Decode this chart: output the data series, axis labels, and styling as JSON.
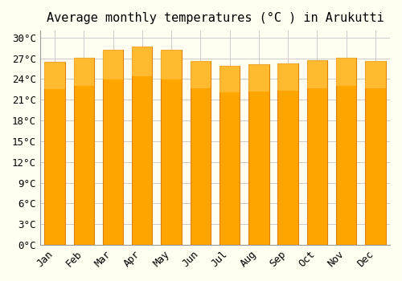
{
  "title": "Average monthly temperatures (°C ) in Arukutti",
  "months": [
    "Jan",
    "Feb",
    "Mar",
    "Apr",
    "May",
    "Jun",
    "Jul",
    "Aug",
    "Sep",
    "Oct",
    "Nov",
    "Dec"
  ],
  "temperatures": [
    26.5,
    27.1,
    28.2,
    28.7,
    28.2,
    26.6,
    25.9,
    26.1,
    26.3,
    26.7,
    27.1,
    26.6
  ],
  "bar_color": "#FFA500",
  "bar_edge_color": "#E08000",
  "background_color": "#FFFEF0",
  "grid_color": "#CCCCCC",
  "ylim": [
    0,
    31
  ],
  "yticks": [
    0,
    3,
    6,
    9,
    12,
    15,
    18,
    21,
    24,
    27,
    30
  ],
  "title_fontsize": 11,
  "tick_fontsize": 9,
  "font_family": "monospace"
}
